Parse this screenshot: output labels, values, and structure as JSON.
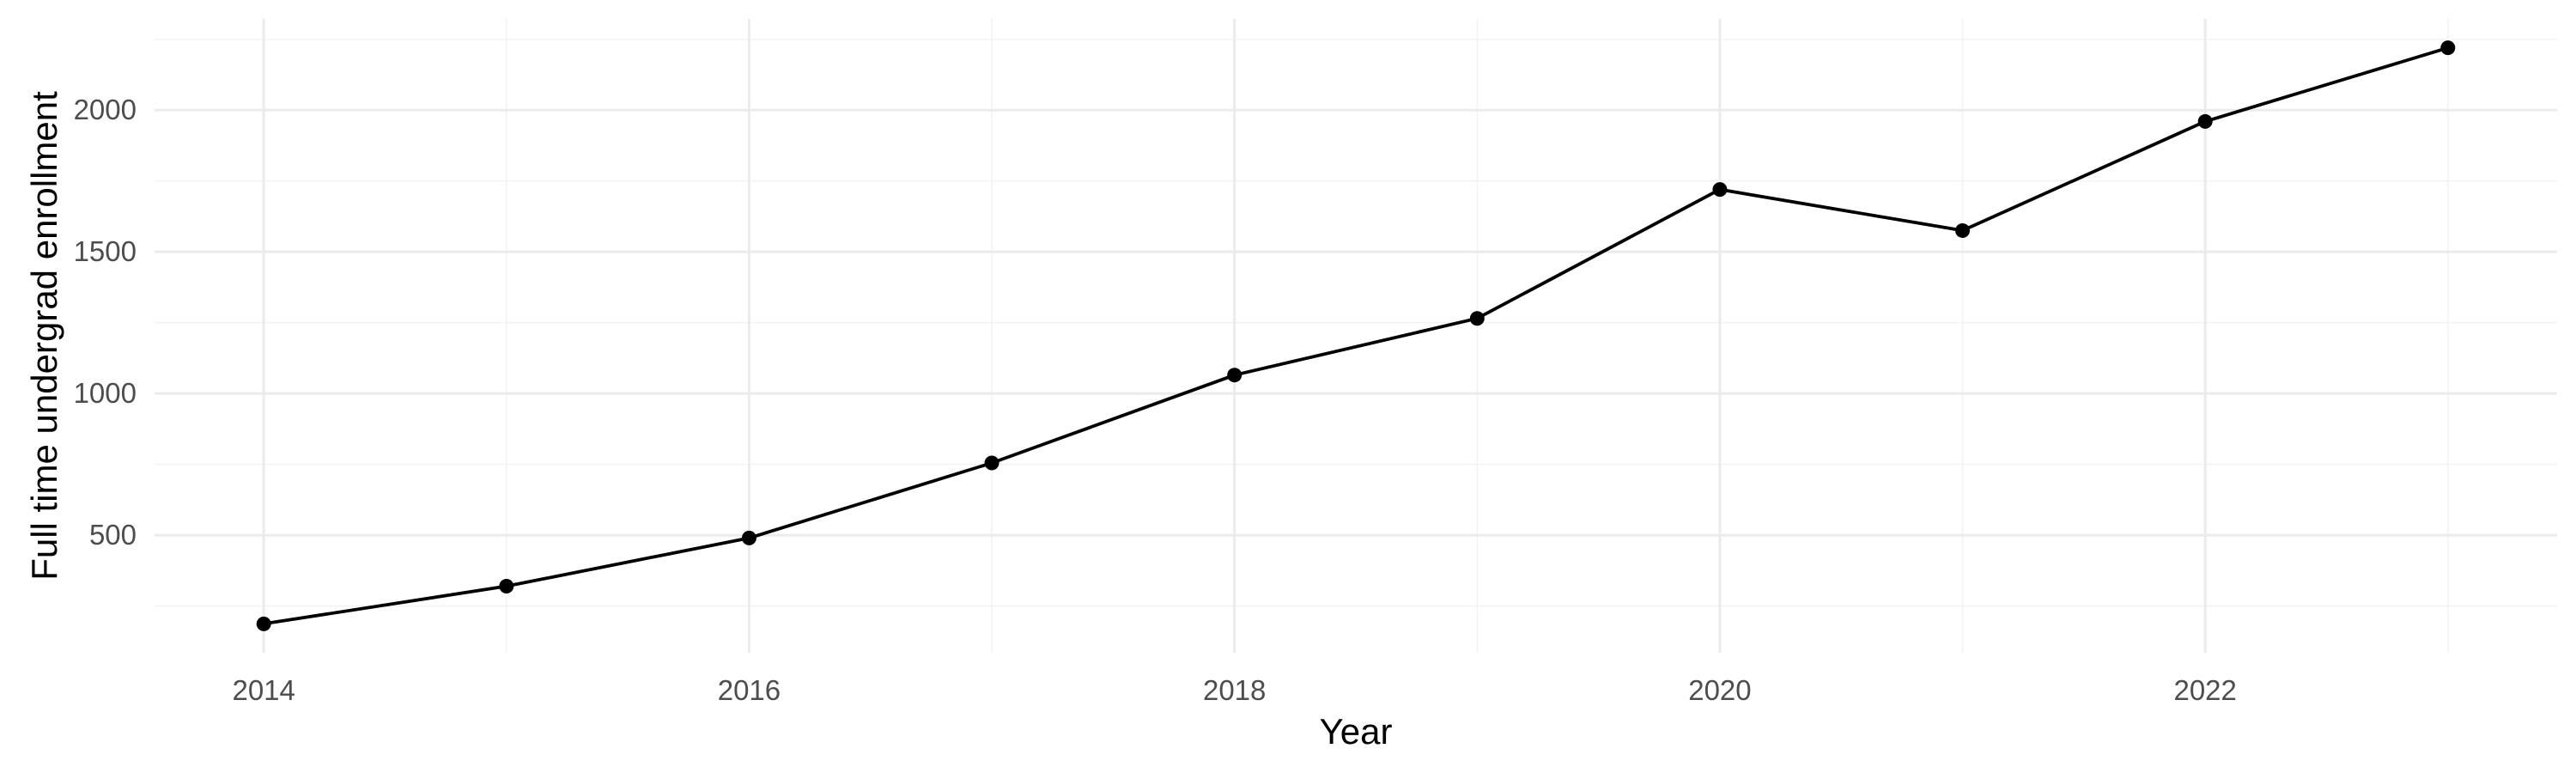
{
  "chart_data": {
    "type": "line",
    "title": "",
    "xlabel": "Year",
    "ylabel": "Full time undergrad enrollment",
    "x": [
      2014,
      2015,
      2016,
      2017,
      2018,
      2019,
      2020,
      2021,
      2022,
      2023
    ],
    "series": [
      {
        "values": [
          187,
          320,
          490,
          755,
          1065,
          1265,
          1720,
          1575,
          1960,
          2220
        ],
        "color": "#000000"
      }
    ],
    "xlim": [
      2013.55,
      2023.45
    ],
    "ylim": [
      85,
      2322
    ],
    "x_ticks": [
      2014,
      2016,
      2018,
      2020,
      2022
    ],
    "x_tick_labels": [
      "2014",
      "2016",
      "2018",
      "2020",
      "2022"
    ],
    "x_minor_ticks": [
      2015,
      2017,
      2019,
      2021,
      2023
    ],
    "y_ticks": [
      500,
      1000,
      1500,
      2000
    ],
    "y_tick_labels": [
      "500",
      "1000",
      "1500",
      "2000"
    ],
    "y_minor_ticks": [
      250,
      750,
      1250,
      1750,
      2250
    ],
    "grid": true,
    "legend": "none",
    "colors": {
      "background": "#ffffff",
      "grid_major": "#ebebeb",
      "grid_minor": "#f3f3f3",
      "line": "#000000",
      "tick_text": "#4d4d4d"
    }
  }
}
